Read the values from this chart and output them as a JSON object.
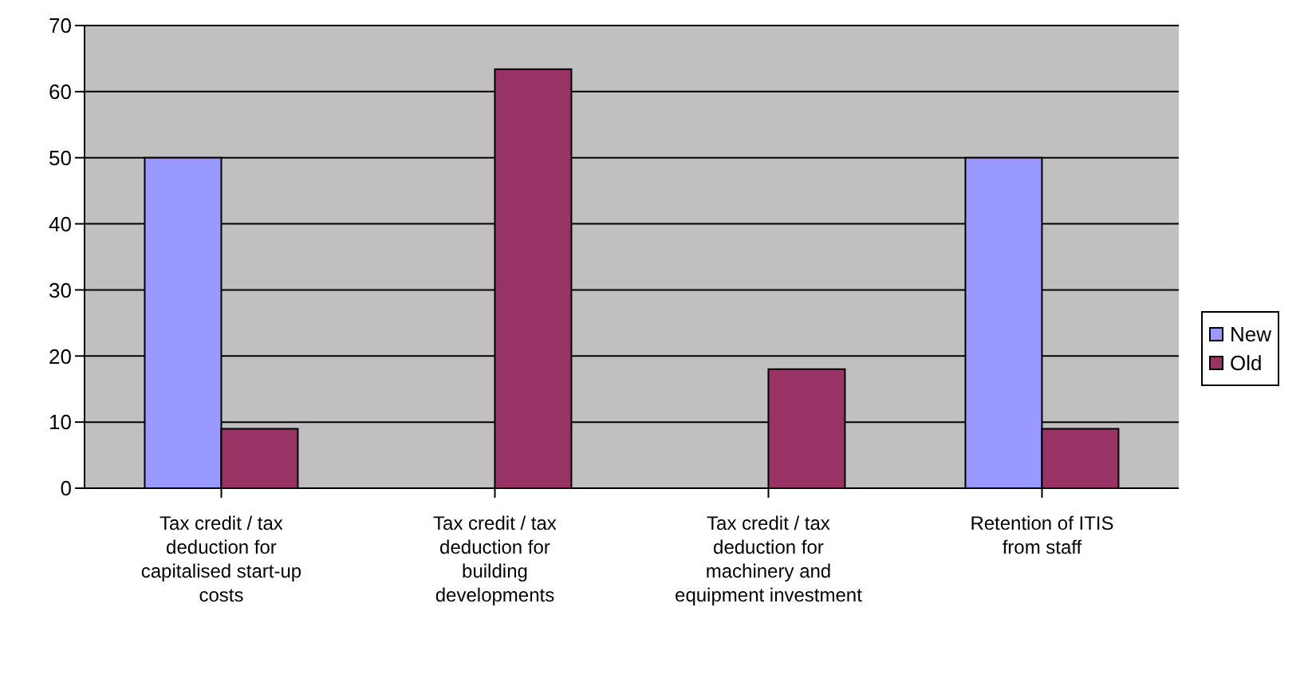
{
  "chart_data": {
    "type": "bar",
    "categories": [
      "Tax credit / tax deduction for capitalised start-up costs",
      "Tax credit / tax deduction for building developments",
      "Tax credit / tax deduction for machinery and equipment investment",
      "Retention of ITIS from staff"
    ],
    "series": [
      {
        "name": "New",
        "color": "#9999ff",
        "values": [
          50,
          null,
          null,
          50
        ]
      },
      {
        "name": "Old",
        "color": "#993366",
        "values": [
          9,
          63.4,
          18,
          9
        ]
      }
    ],
    "ylim": [
      0,
      70
    ],
    "yticks": [
      0,
      10,
      20,
      30,
      40,
      50,
      60,
      70
    ],
    "grid": "y",
    "legend": "right"
  }
}
